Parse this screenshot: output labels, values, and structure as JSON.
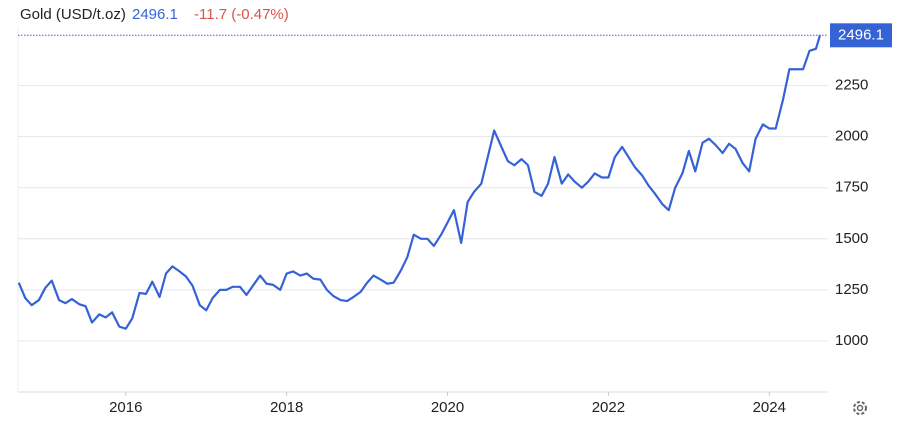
{
  "chart_data": {
    "type": "line",
    "title": "Gold (USD/t.oz)",
    "change": "-11.7 (-0.47%)",
    "series": [
      {
        "name": "Gold",
        "color": "#3563d6",
        "x": [
          2014.67,
          2014.75,
          2014.83,
          2014.92,
          2015.0,
          2015.08,
          2015.17,
          2015.25,
          2015.33,
          2015.42,
          2015.5,
          2015.58,
          2015.67,
          2015.75,
          2015.83,
          2015.92,
          2016.0,
          2016.08,
          2016.17,
          2016.25,
          2016.33,
          2016.42,
          2016.5,
          2016.58,
          2016.67,
          2016.75,
          2016.83,
          2016.92,
          2017.0,
          2017.08,
          2017.17,
          2017.25,
          2017.33,
          2017.42,
          2017.5,
          2017.58,
          2017.67,
          2017.75,
          2017.83,
          2017.92,
          2018.0,
          2018.08,
          2018.17,
          2018.25,
          2018.33,
          2018.42,
          2018.5,
          2018.58,
          2018.67,
          2018.75,
          2018.83,
          2018.92,
          2019.0,
          2019.08,
          2019.17,
          2019.25,
          2019.33,
          2019.42,
          2019.5,
          2019.58,
          2019.67,
          2019.75,
          2019.83,
          2019.92,
          2020.0,
          2020.08,
          2020.17,
          2020.25,
          2020.33,
          2020.42,
          2020.5,
          2020.58,
          2020.67,
          2020.75,
          2020.83,
          2020.92,
          2021.0,
          2021.08,
          2021.17,
          2021.25,
          2021.33,
          2021.42,
          2021.5,
          2021.58,
          2021.67,
          2021.75,
          2021.83,
          2021.92,
          2022.0,
          2022.08,
          2022.17,
          2022.25,
          2022.33,
          2022.42,
          2022.5,
          2022.58,
          2022.67,
          2022.75,
          2022.83,
          2022.92,
          2023.0,
          2023.08,
          2023.17,
          2023.25,
          2023.33,
          2023.42,
          2023.5,
          2023.58,
          2023.67,
          2023.75,
          2023.83,
          2023.92,
          2024.0,
          2024.08,
          2024.17,
          2024.25,
          2024.33,
          2024.42,
          2024.5,
          2024.58,
          2024.63
        ],
        "values": [
          1285,
          1210,
          1175,
          1200,
          1260,
          1295,
          1200,
          1185,
          1205,
          1180,
          1170,
          1090,
          1130,
          1115,
          1140,
          1070,
          1060,
          1110,
          1235,
          1230,
          1290,
          1215,
          1330,
          1365,
          1340,
          1315,
          1270,
          1175,
          1150,
          1210,
          1250,
          1250,
          1265,
          1265,
          1225,
          1270,
          1320,
          1280,
          1275,
          1250,
          1330,
          1340,
          1320,
          1330,
          1305,
          1300,
          1250,
          1220,
          1200,
          1195,
          1215,
          1240,
          1285,
          1320,
          1300,
          1280,
          1285,
          1345,
          1410,
          1520,
          1500,
          1500,
          1465,
          1520,
          1580,
          1640,
          1480,
          1680,
          1730,
          1770,
          1900,
          2030,
          1950,
          1880,
          1860,
          1890,
          1860,
          1730,
          1710,
          1770,
          1900,
          1770,
          1815,
          1780,
          1750,
          1780,
          1820,
          1800,
          1800,
          1900,
          1950,
          1900,
          1850,
          1810,
          1760,
          1720,
          1670,
          1640,
          1750,
          1820,
          1930,
          1830,
          1970,
          1990,
          1960,
          1920,
          1965,
          1940,
          1870,
          1830,
          1990,
          2060,
          2040,
          2040,
          2180,
          2330,
          2330,
          2330,
          2420,
          2430,
          2496.1
        ]
      }
    ],
    "xlim": [
      2014.66,
      2024.73
    ],
    "xticks": [
      2016,
      2018,
      2020,
      2022,
      2024
    ],
    "ylim": [
      750,
      2620
    ],
    "yticks": [
      1000,
      1250,
      1500,
      1750,
      2000,
      2250
    ],
    "grid": true
  }
}
